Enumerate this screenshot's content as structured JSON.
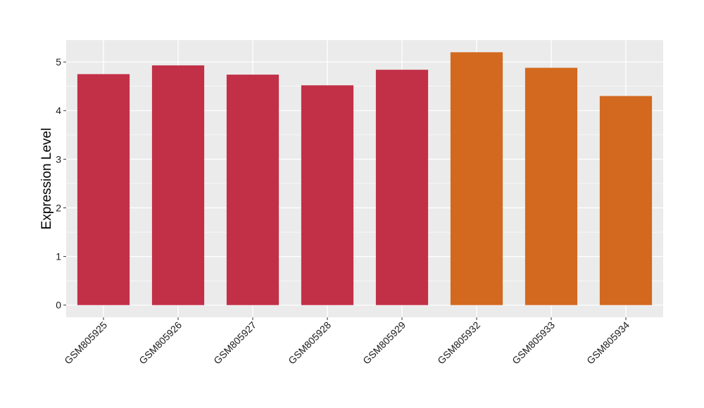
{
  "chart_data": {
    "type": "bar",
    "categories": [
      "GSM805925",
      "GSM805926",
      "GSM805927",
      "GSM805928",
      "GSM805929",
      "GSM805932",
      "GSM805933",
      "GSM805934"
    ],
    "values": [
      4.75,
      4.93,
      4.74,
      4.52,
      4.84,
      5.2,
      4.88,
      4.3
    ],
    "colors": [
      "#c23048",
      "#c23048",
      "#c23048",
      "#c23048",
      "#c23048",
      "#d2691f",
      "#d2691f",
      "#d2691f"
    ],
    "ylabel": "Expression Level",
    "yticks": [
      0,
      1,
      2,
      3,
      4,
      5
    ],
    "ylim": [
      -0.25,
      5.45
    ],
    "grid": true,
    "panel_background": "#ebebeb",
    "grid_color": "#ffffff"
  }
}
